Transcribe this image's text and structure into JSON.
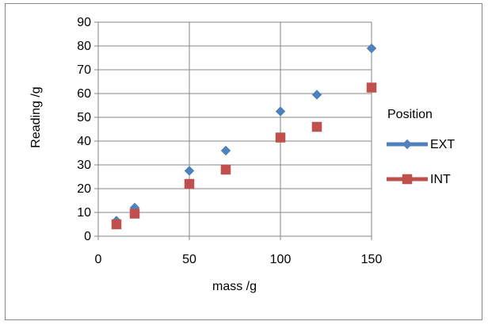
{
  "chart_data": {
    "type": "scatter",
    "title": "",
    "xlabel": "mass /g",
    "ylabel": "Reading /g",
    "xlim": [
      0,
      150
    ],
    "ylim": [
      0,
      90
    ],
    "x_ticks": [
      "0",
      "50",
      "100",
      "150"
    ],
    "y_ticks": [
      "0",
      "10",
      "20",
      "30",
      "40",
      "50",
      "60",
      "70",
      "80",
      "90"
    ],
    "grid": true,
    "legend_title": "Position",
    "legend_position": "right",
    "series": [
      {
        "name": "EXT",
        "marker": "diamond",
        "color": "#4F81BD",
        "x": [
          10,
          20,
          50,
          70,
          100,
          120,
          150
        ],
        "y": [
          6.5,
          12,
          27.5,
          36,
          52.5,
          59.5,
          79
        ]
      },
      {
        "name": "INT",
        "marker": "square",
        "color": "#C0504D",
        "x": [
          10,
          20,
          50,
          70,
          100,
          120,
          150
        ],
        "y": [
          5,
          9.5,
          22,
          28,
          41.5,
          46,
          62.5
        ]
      }
    ]
  }
}
